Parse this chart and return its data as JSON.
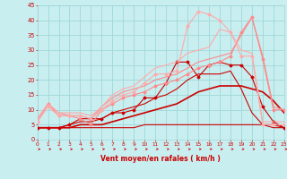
{
  "xlim": [
    0,
    23
  ],
  "ylim": [
    0,
    45
  ],
  "xticks": [
    0,
    1,
    2,
    3,
    4,
    5,
    6,
    7,
    8,
    9,
    10,
    11,
    12,
    13,
    14,
    15,
    16,
    17,
    18,
    19,
    20,
    21,
    22,
    23
  ],
  "yticks": [
    0,
    5,
    10,
    15,
    20,
    25,
    30,
    35,
    40,
    45
  ],
  "bg_color": "#c8eef0",
  "grid_color": "#a0d8d8",
  "xlabel": "Vent moyen/en rafales ( km/h )",
  "label_color": "#cc0000",
  "tick_color": "#cc0000",
  "lines": [
    {
      "x": [
        0,
        1,
        2,
        3,
        4,
        5,
        6,
        7,
        8,
        9,
        10,
        11,
        12,
        13,
        14,
        15,
        16,
        17,
        18,
        19,
        20,
        21,
        22,
        23
      ],
      "y": [
        4,
        4,
        4,
        5,
        7,
        7,
        7,
        9,
        9,
        10,
        14,
        14,
        19,
        26,
        26,
        21,
        25,
        26,
        25,
        25,
        21,
        11,
        6,
        4
      ],
      "color": "#cc0000",
      "lw": 0.8,
      "marker": "D",
      "ms": 1.5
    },
    {
      "x": [
        0,
        1,
        2,
        3,
        4,
        5,
        6,
        7,
        8,
        9,
        10,
        11,
        12,
        13,
        14,
        15,
        16,
        17,
        18,
        19,
        20,
        21,
        22,
        23
      ],
      "y": [
        4,
        4,
        4,
        5,
        6,
        6,
        7,
        9,
        10,
        11,
        12,
        14,
        15,
        17,
        20,
        22,
        22,
        22,
        23,
        17,
        9,
        5,
        4,
        4
      ],
      "color": "#cc0000",
      "lw": 0.8,
      "marker": null,
      "ms": 0
    },
    {
      "x": [
        0,
        1,
        2,
        3,
        4,
        5,
        6,
        7,
        8,
        9,
        10,
        11,
        12,
        13,
        14,
        15,
        16,
        17,
        18,
        19,
        20,
        21,
        22,
        23
      ],
      "y": [
        4,
        4,
        4,
        4,
        5,
        5,
        5,
        6,
        7,
        8,
        9,
        10,
        11,
        12,
        14,
        16,
        17,
        18,
        18,
        18,
        17,
        16,
        13,
        9
      ],
      "color": "#cc0000",
      "lw": 1.2,
      "marker": null,
      "ms": 0
    },
    {
      "x": [
        0,
        1,
        2,
        3,
        4,
        5,
        6,
        7,
        8,
        9,
        10,
        11,
        12,
        13,
        14,
        15,
        16,
        17,
        18,
        19,
        20,
        21,
        22,
        23
      ],
      "y": [
        4,
        4,
        4,
        4,
        4,
        4,
        4,
        4,
        4,
        4,
        5,
        5,
        5,
        5,
        5,
        5,
        5,
        5,
        5,
        5,
        5,
        5,
        5,
        4
      ],
      "color": "#cc0000",
      "lw": 0.8,
      "marker": null,
      "ms": 0
    },
    {
      "x": [
        0,
        1,
        2,
        3,
        4,
        5,
        6,
        7,
        8,
        9,
        10,
        11,
        12,
        13,
        14,
        15,
        16,
        17,
        18,
        19,
        20,
        21,
        22,
        23
      ],
      "y": [
        6,
        12,
        8,
        8,
        7,
        5,
        10,
        12,
        14,
        15,
        16,
        18,
        19,
        20,
        22,
        24,
        25,
        26,
        28,
        36,
        41,
        27,
        10,
        10
      ],
      "color": "#ff8888",
      "lw": 0.8,
      "marker": "D",
      "ms": 1.5
    },
    {
      "x": [
        0,
        1,
        2,
        3,
        4,
        5,
        6,
        7,
        8,
        9,
        10,
        11,
        12,
        13,
        14,
        15,
        16,
        17,
        18,
        19,
        20,
        21,
        22,
        23
      ],
      "y": [
        7,
        12,
        9,
        8,
        8,
        7,
        11,
        14,
        16,
        17,
        18,
        20,
        21,
        22,
        24,
        26,
        27,
        28,
        29,
        35,
        41,
        28,
        11,
        10
      ],
      "color": "#ff8888",
      "lw": 0.8,
      "marker": null,
      "ms": 0
    },
    {
      "x": [
        0,
        1,
        2,
        3,
        4,
        5,
        6,
        7,
        8,
        9,
        10,
        11,
        12,
        13,
        14,
        15,
        16,
        17,
        18,
        19,
        20,
        21,
        22,
        23
      ],
      "y": [
        6,
        11,
        8,
        8,
        8,
        7,
        10,
        13,
        15,
        16,
        19,
        22,
        22,
        23,
        38,
        43,
        42,
        40,
        36,
        28,
        28,
        5,
        5,
        5
      ],
      "color": "#ffaaaa",
      "lw": 0.8,
      "marker": "D",
      "ms": 1.5
    },
    {
      "x": [
        0,
        1,
        2,
        3,
        4,
        5,
        6,
        7,
        8,
        9,
        10,
        11,
        12,
        13,
        14,
        15,
        16,
        17,
        18,
        19,
        20,
        21,
        22,
        23
      ],
      "y": [
        7,
        12,
        9,
        9,
        9,
        8,
        11,
        15,
        17,
        18,
        21,
        24,
        25,
        26,
        29,
        30,
        31,
        37,
        36,
        30,
        29,
        6,
        6,
        6
      ],
      "color": "#ffaaaa",
      "lw": 0.8,
      "marker": null,
      "ms": 0
    }
  ]
}
